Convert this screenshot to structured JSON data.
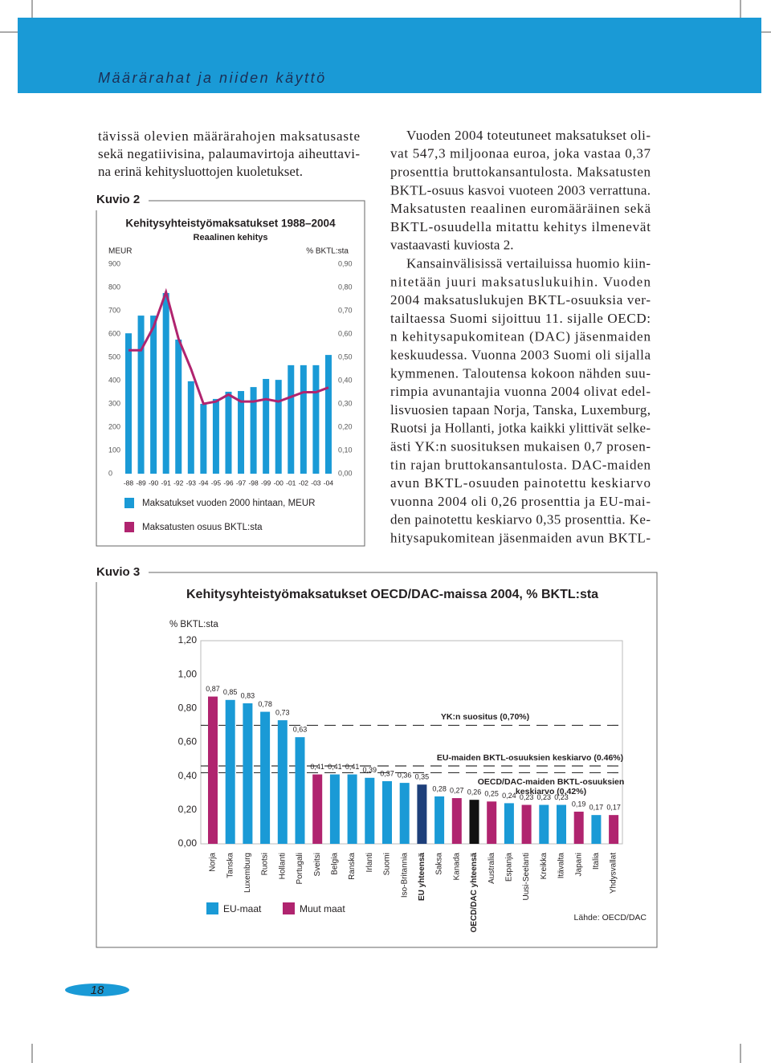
{
  "header": {
    "title": "Määrärahat ja niiden käyttö"
  },
  "body": {
    "left_lines": [
      "tävissä olevien määrärahojen maksatusaste",
      "sekä negatiivisina, palaumavirtoja aiheuttavi-",
      "na erinä kehitysluottojen kuoletukset."
    ],
    "right_paragraphs": [
      [
        "Vuoden 2004 toteutuneet maksatukset oli-",
        "vat 547,3 miljoonaa euroa, joka vastaa 0,37",
        "prosenttia bruttokansantulosta. Maksatusten",
        "BKTL-osuus kasvoi vuoteen 2003 verrattuna.",
        "Maksatusten reaalinen euromääräinen sekä",
        "BKTL-osuudella mitattu kehitys ilmenevät",
        "vastaavasti kuviosta 2."
      ],
      [
        "Kansainvälisissä vertailuissa huomio kiin-",
        "nitetään juuri maksatuslukuihin. Vuoden",
        "2004 maksatuslukujen BKTL-osuuksia ver-",
        "tailtaessa Suomi sijoittuu 11. sijalle OECD:",
        "n kehitysapukomitean (DAC) jäsenmaiden",
        "keskuudessa. Vuonna 2003 Suomi oli sijalla",
        "kymmenen. Taloutensa kokoon nähden suu-",
        "rimpia avunantajia vuonna 2004 olivat edel-",
        "lisvuosien tapaan Norja, Tanska, Luxemburg,",
        "Ruotsi ja Hollanti, jotka kaikki ylittivät selke-",
        "ästi YK:n suosituksen mukaisen 0,7 prosen-",
        "tin rajan bruttokansantulosta. DAC-maiden",
        "avun BKTL-osuuden painotettu keskiarvo",
        "vuonna 2004 oli 0,26 prosenttia ja EU-mai-",
        "den painotettu keskiarvo 0,35 prosenttia. Ke-",
        "hitysapukomitean jäsenmaiden avun BKTL-"
      ]
    ]
  },
  "page_number": "18",
  "chart_data": [
    {
      "type": "combo",
      "label": "Kuvio 2",
      "title": "Kehitysyhteistyömaksatukset 1988–2004",
      "subtitle": "Reaalinen kehitys",
      "ylabel": "MEUR",
      "y2label": "% BKTL:sta",
      "categories": [
        "-88",
        "-89",
        "-90",
        "-91",
        "-92",
        "-93",
        "-94",
        "-95",
        "-96",
        "-97",
        "-98",
        "-99",
        "-00",
        "-01",
        "-02",
        "-03",
        "-04"
      ],
      "series": [
        {
          "name": "Maksatukset vuoden 2000 hintaan, MEUR",
          "type": "bar",
          "color": "#1a9ad6",
          "values": [
            603,
            679,
            679,
            776,
            576,
            397,
            300,
            321,
            352,
            355,
            372,
            407,
            403,
            466,
            466,
            466,
            510
          ]
        },
        {
          "name": "Maksatusten osuus BKTL:sta",
          "type": "line",
          "axis": "y2",
          "color": "#b0246f",
          "values": [
            0.53,
            0.53,
            0.63,
            0.78,
            0.58,
            0.45,
            0.3,
            0.31,
            0.34,
            0.31,
            0.31,
            0.32,
            0.31,
            0.33,
            0.35,
            0.35,
            0.37
          ]
        }
      ],
      "ylim": [
        0,
        900
      ],
      "yticks": [
        0,
        100,
        200,
        300,
        400,
        500,
        600,
        700,
        800,
        900
      ],
      "y2lim": [
        0,
        0.9
      ],
      "y2ticks": [
        {
          "value": 0,
          "label": "0,00"
        },
        {
          "value": 0.1,
          "label": "0,10"
        },
        {
          "value": 0.2,
          "label": "0,20"
        },
        {
          "value": 0.3,
          "label": "0,30"
        },
        {
          "value": 0.4,
          "label": "0,40"
        },
        {
          "value": 0.5,
          "label": "0,50"
        },
        {
          "value": 0.6,
          "label": "0,60"
        },
        {
          "value": 0.7,
          "label": "0,70"
        },
        {
          "value": 0.8,
          "label": "0,80"
        },
        {
          "value": 0.9,
          "label": "0,90"
        }
      ]
    },
    {
      "type": "bar",
      "label": "Kuvio 3",
      "title": "Kehitysyhteistyömaksatukset OECD/DAC-maissa 2004, % BKTL:sta",
      "ylabel": "% BKTL:sta",
      "categories": [
        "Norja",
        "Tanska",
        "Luxemburg",
        "Ruotsi",
        "Hollanti",
        "Portugali",
        "Sveitsi",
        "Belgia",
        "Ranska",
        "Irlanti",
        "Suomi",
        "Iso-Britannia",
        "EU yhteensä",
        "Saksa",
        "Kanada",
        "OECD/DAC yhteensä",
        "Australia",
        "Espanja",
        "Uusi-Seelanti",
        "Kreikka",
        "Itävalta",
        "Japani",
        "Italia",
        "Yhdysvallat"
      ],
      "values": [
        0.87,
        0.85,
        0.83,
        0.78,
        0.73,
        0.63,
        0.41,
        0.41,
        0.41,
        0.39,
        0.37,
        0.36,
        0.35,
        0.28,
        0.27,
        0.26,
        0.25,
        0.24,
        0.23,
        0.23,
        0.23,
        0.19,
        0.17,
        0.17
      ],
      "value_labels": [
        "0,87",
        "0,85",
        "0,83",
        "0,78",
        "0,73",
        "0,63",
        "0,41",
        "0,41",
        "0,41",
        "0,39",
        "0,37",
        "0,36",
        "0,35",
        "0,28",
        "0,27",
        "0,26",
        "0,25",
        "0,24",
        "0,23",
        "0,23",
        "0,23",
        "0,19",
        "0,17",
        "0,17"
      ],
      "colors": [
        "#b0246f",
        "#1a9ad6",
        "#1a9ad6",
        "#1a9ad6",
        "#1a9ad6",
        "#1a9ad6",
        "#b0246f",
        "#1a9ad6",
        "#1a9ad6",
        "#1a9ad6",
        "#1a9ad6",
        "#1a9ad6",
        "#1d3f7a",
        "#1a9ad6",
        "#b0246f",
        "#111111",
        "#b0246f",
        "#1a9ad6",
        "#b0246f",
        "#1a9ad6",
        "#1a9ad6",
        "#b0246f",
        "#1a9ad6",
        "#b0246f"
      ],
      "legend": [
        {
          "name": "EU-maat",
          "color": "#1a9ad6"
        },
        {
          "name": "Muut maat",
          "color": "#b0246f"
        }
      ],
      "reference_lines": [
        {
          "value": 0.7,
          "label": [
            "YK:n suositus (0,70%)"
          ]
        },
        {
          "value": 0.46,
          "label": [
            "EU-maiden BKTL-osuuksien keskiarvo (0.46%)"
          ]
        },
        {
          "value": 0.42,
          "label": [
            "OECD/DAC-maiden BKTL-osuuksien",
            "keskiarvo (0,42%)"
          ]
        }
      ],
      "ylim": [
        0,
        1.2
      ],
      "yticks": [
        {
          "value": 0,
          "label": "0,00"
        },
        {
          "value": 0.2,
          "label": "0,20"
        },
        {
          "value": 0.4,
          "label": "0,40"
        },
        {
          "value": 0.6,
          "label": "0,60"
        },
        {
          "value": 0.8,
          "label": "0,80"
        },
        {
          "value": 1,
          "label": "1,00"
        },
        {
          "value": 1.2,
          "label": "1,20"
        }
      ],
      "source": "Lähde: OECD/DAC"
    }
  ]
}
